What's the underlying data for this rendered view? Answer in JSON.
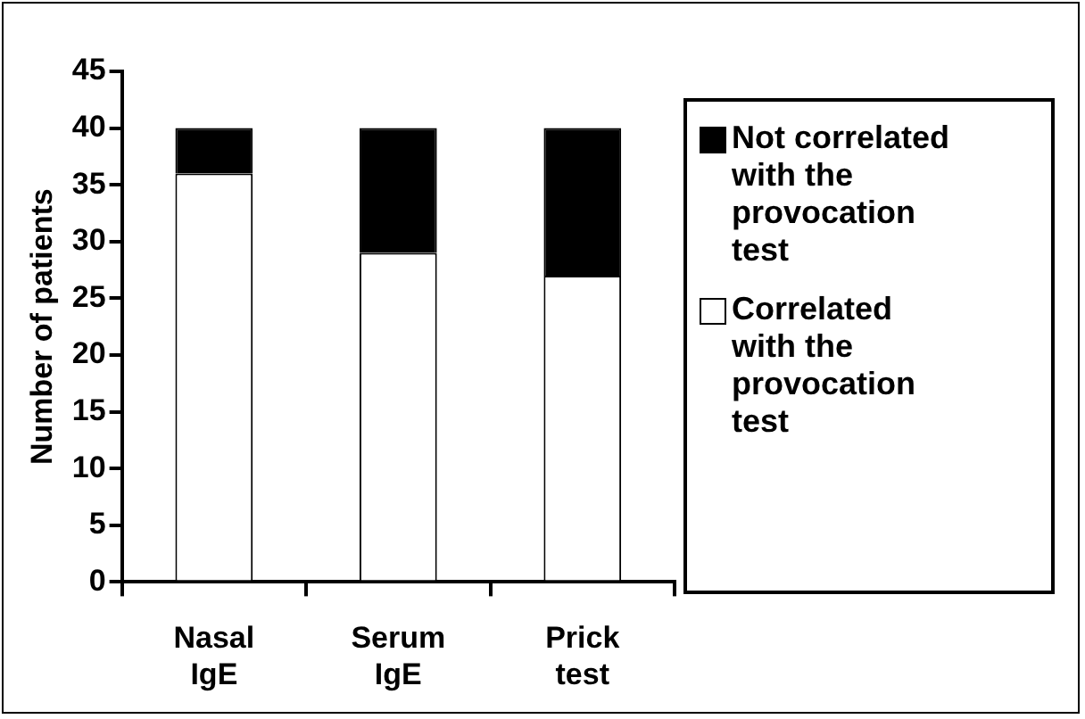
{
  "chart_data": {
    "type": "bar",
    "stacked": true,
    "ylabel": "Number of patients",
    "categories": [
      "Nasal IgE",
      "Serum IgE",
      "Prick test"
    ],
    "series": [
      {
        "name": "Correlated with the provocation test",
        "color": "#ffffff",
        "values": [
          36,
          29,
          27
        ]
      },
      {
        "name": "Not correlated with the provocation test",
        "color": "#000000",
        "values": [
          4,
          11,
          13
        ]
      }
    ],
    "ylim": [
      0,
      45
    ],
    "yticks": [
      0,
      5,
      10,
      15,
      20,
      25,
      30,
      35,
      40,
      45
    ],
    "grid": false,
    "legend": "right"
  }
}
